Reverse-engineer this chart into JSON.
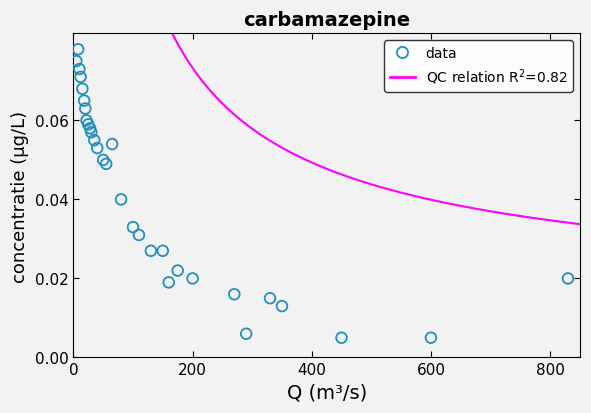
{
  "title": "carbamazepine",
  "xlabel": "Q (m³/s)",
  "ylabel": "concentratie (µg/L)",
  "scatter_x": [
    5,
    8,
    10,
    12,
    15,
    18,
    20,
    22,
    25,
    28,
    30,
    35,
    40,
    50,
    55,
    65,
    80,
    100,
    110,
    130,
    150,
    160,
    175,
    200,
    270,
    290,
    330,
    350,
    450,
    600,
    830
  ],
  "scatter_y": [
    0.075,
    0.078,
    0.073,
    0.071,
    0.068,
    0.065,
    0.063,
    0.06,
    0.059,
    0.058,
    0.057,
    0.055,
    0.053,
    0.05,
    0.049,
    0.054,
    0.04,
    0.033,
    0.031,
    0.027,
    0.027,
    0.019,
    0.022,
    0.02,
    0.016,
    0.006,
    0.015,
    0.013,
    0.005,
    0.005,
    0.02
  ],
  "curve_alpha": 2.8,
  "curve_q0": 2.0,
  "curve_beta": 0.72,
  "curve_cinf": 0.012,
  "marker_color": "#1F8FBF",
  "curve_color": "#FF00FF",
  "marker_size": 7,
  "curve_linewidth": 1.5,
  "xlim": [
    0,
    850
  ],
  "ylim": [
    0,
    0.082
  ],
  "yticks": [
    0,
    0.02,
    0.04,
    0.06
  ],
  "xticks": [
    0,
    200,
    400,
    600,
    800
  ],
  "legend_data_label": "data",
  "legend_curve_label": "QC relation R$^2$=0.82",
  "title_fontsize": 14,
  "axis_fontsize": 13,
  "tick_fontsize": 11,
  "bg_color": "#f2f2f2",
  "fig_bg_color": "#f2f2f2"
}
